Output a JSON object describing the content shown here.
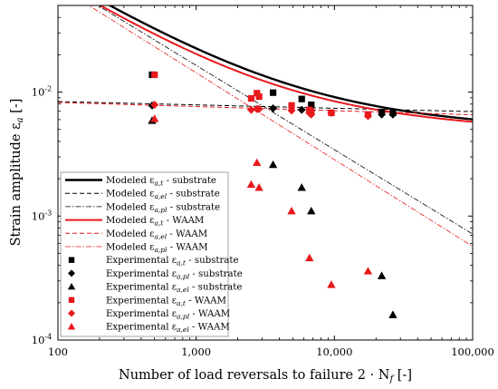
{
  "chart_data": {
    "type": "scatter",
    "title": "",
    "xlabel": "Number of load reversals to failure 2 · N",
    "xlabel_sub": "f",
    "xlabel_unit": " [-]",
    "ylabel": "Strain amplitude ε",
    "ylabel_sub": "a",
    "ylabel_unit": " [-]",
    "x_scale": "log",
    "y_scale": "log",
    "xlim": [
      100,
      100000
    ],
    "ylim": [
      0.0001,
      0.05
    ],
    "x_ticks": [
      {
        "value": 100,
        "label": "100"
      },
      {
        "value": 1000,
        "label": "1,000"
      },
      {
        "value": 10000,
        "label": "10,000"
      },
      {
        "value": 100000,
        "label": "100,000"
      }
    ],
    "y_ticks": [
      {
        "value": 0.0001,
        "base": "10",
        "exp": "-4"
      },
      {
        "value": 0.001,
        "base": "10",
        "exp": "-3"
      },
      {
        "value": 0.01,
        "base": "10",
        "exp": "-2"
      }
    ],
    "grid": false,
    "legend_position": "bottom-left",
    "colors": {
      "black": "#000000",
      "red": "#e8191c",
      "gray": "#8c8c8c"
    },
    "model_curves": [
      {
        "name": "Modeled ε_a,t - substrate",
        "color": "#000000",
        "style": "solid",
        "width": 2.4,
        "kind": "total",
        "sigma": 0.0075,
        "b": -0.03,
        "eps": 1.8,
        "c": -0.68
      },
      {
        "name": "Modeled ε_a,el - substrate",
        "color": "#000000",
        "style": "dashed",
        "width": 1.0,
        "kind": "elastic",
        "sigma": 0.0095,
        "b": -0.027
      },
      {
        "name": "Modeled ε_a,pl - substrate",
        "color": "#000000",
        "style": "dashdot",
        "width": 0.8,
        "kind": "plastic",
        "eps": 1.8,
        "c": -0.68
      },
      {
        "name": "Modeled ε_a,t - WAAM",
        "color": "#e8191c",
        "style": "solid",
        "width": 2.0,
        "kind": "total",
        "sigma": 0.0075,
        "b": -0.032,
        "eps": 1.8,
        "c": -0.7
      },
      {
        "name": "Modeled ε_a,el - WAAM",
        "color": "#e8191c",
        "style": "dashed",
        "width": 1.0,
        "kind": "elastic",
        "sigma": 0.0096,
        "b": -0.033
      },
      {
        "name": "Modeled ε_a,pl - WAAM",
        "color": "#e8191c",
        "style": "dashdot",
        "width": 0.8,
        "kind": "plastic",
        "eps": 1.8,
        "c": -0.7
      }
    ],
    "series": [
      {
        "name": "Experimental ε_a,t - substrate",
        "marker": "square",
        "color": "#000000",
        "points": [
          [
            480,
            0.0138
          ],
          [
            3600,
            0.0099
          ],
          [
            5800,
            0.0088
          ],
          [
            6800,
            0.0079
          ],
          [
            22000,
            0.0069
          ],
          [
            26500,
            0.0068
          ]
        ]
      },
      {
        "name": "Experimental ε_a,pl - substrate",
        "marker": "diamond",
        "color": "#000000",
        "points": [
          [
            480,
            0.0078
          ],
          [
            3600,
            0.0074
          ],
          [
            5800,
            0.0072
          ],
          [
            6800,
            0.0071
          ],
          [
            22000,
            0.0066
          ],
          [
            26500,
            0.0066
          ]
        ]
      },
      {
        "name": "Experimental ε_a,el - substrate",
        "marker": "triangle",
        "color": "#000000",
        "points": [
          [
            480,
            0.0059
          ],
          [
            3600,
            0.0026
          ],
          [
            5800,
            0.0017
          ],
          [
            6800,
            0.0011
          ],
          [
            22000,
            0.00033
          ],
          [
            26500,
            0.00016
          ]
        ]
      },
      {
        "name": "Experimental ε_a,t - WAAM",
        "marker": "square",
        "color": "#e8191c",
        "points": [
          [
            500,
            0.0138
          ],
          [
            2500,
            0.0089
          ],
          [
            2750,
            0.0098
          ],
          [
            2850,
            0.0092
          ],
          [
            4900,
            0.0078
          ],
          [
            6600,
            0.0072
          ],
          [
            6800,
            0.0069
          ],
          [
            9500,
            0.0068
          ],
          [
            17500,
            0.0066
          ]
        ]
      },
      {
        "name": "Experimental ε_a,pl - WAAM",
        "marker": "diamond",
        "color": "#e8191c",
        "points": [
          [
            500,
            0.0079
          ],
          [
            2500,
            0.0072
          ],
          [
            2750,
            0.0073
          ],
          [
            2850,
            0.0073
          ],
          [
            4900,
            0.0071
          ],
          [
            6600,
            0.0068
          ],
          [
            6800,
            0.0066
          ],
          [
            9500,
            0.0068
          ],
          [
            17500,
            0.0064
          ]
        ]
      },
      {
        "name": "Experimental ε_a,el - WAAM",
        "marker": "triangle",
        "color": "#e8191c",
        "points": [
          [
            500,
            0.0061
          ],
          [
            2500,
            0.0018
          ],
          [
            2750,
            0.0027
          ],
          [
            2850,
            0.0017
          ],
          [
            4900,
            0.0011
          ],
          [
            6600,
            0.00046
          ],
          [
            9500,
            0.00028
          ],
          [
            17500,
            0.00036
          ]
        ]
      }
    ],
    "legend": [
      {
        "symbol": "line",
        "style": "solid",
        "color": "#000000",
        "width": 2.4,
        "text": "Modeled ε",
        "sub": "a,t",
        "rest": " - substrate"
      },
      {
        "symbol": "line",
        "style": "dashed",
        "color": "#000000",
        "width": 1.0,
        "text": "Modeled ε",
        "sub": "a,el",
        "rest": " - substrate"
      },
      {
        "symbol": "line",
        "style": "dashdot",
        "color": "#000000",
        "width": 0.8,
        "text": "Modeled ε",
        "sub": "a,pl",
        "rest": " - substrate"
      },
      {
        "symbol": "line",
        "style": "solid",
        "color": "#e8191c",
        "width": 2.0,
        "text": "Modeled ε",
        "sub": "a,t",
        "rest": " - WAAM"
      },
      {
        "symbol": "line",
        "style": "dashed",
        "color": "#e8191c",
        "width": 1.0,
        "text": "Modeled ε",
        "sub": "a,el",
        "rest": " - WAAM"
      },
      {
        "symbol": "line",
        "style": "dashdot",
        "color": "#e8191c",
        "width": 0.8,
        "text": "Modeled ε",
        "sub": "a,pl",
        "rest": " - WAAM"
      },
      {
        "symbol": "square",
        "color": "#000000",
        "text": "Experimental ε",
        "sub": "a,t",
        "rest": " - substrate"
      },
      {
        "symbol": "diamond",
        "color": "#000000",
        "text": "Experimental ε",
        "sub": "a,pl",
        "rest": " - substrate"
      },
      {
        "symbol": "triangle",
        "color": "#000000",
        "text": "Experimental ε",
        "sub": "a,el",
        "rest": " - substrate"
      },
      {
        "symbol": "square",
        "color": "#e8191c",
        "text": "Experimental ε",
        "sub": "a,t",
        "rest": " - WAAM"
      },
      {
        "symbol": "diamond",
        "color": "#e8191c",
        "text": "Experimental ε",
        "sub": "a,pl",
        "rest": " - WAAM"
      },
      {
        "symbol": "triangle",
        "color": "#e8191c",
        "text": "Experimental ε",
        "sub": "a,el",
        "rest": " - WAAM"
      }
    ]
  }
}
